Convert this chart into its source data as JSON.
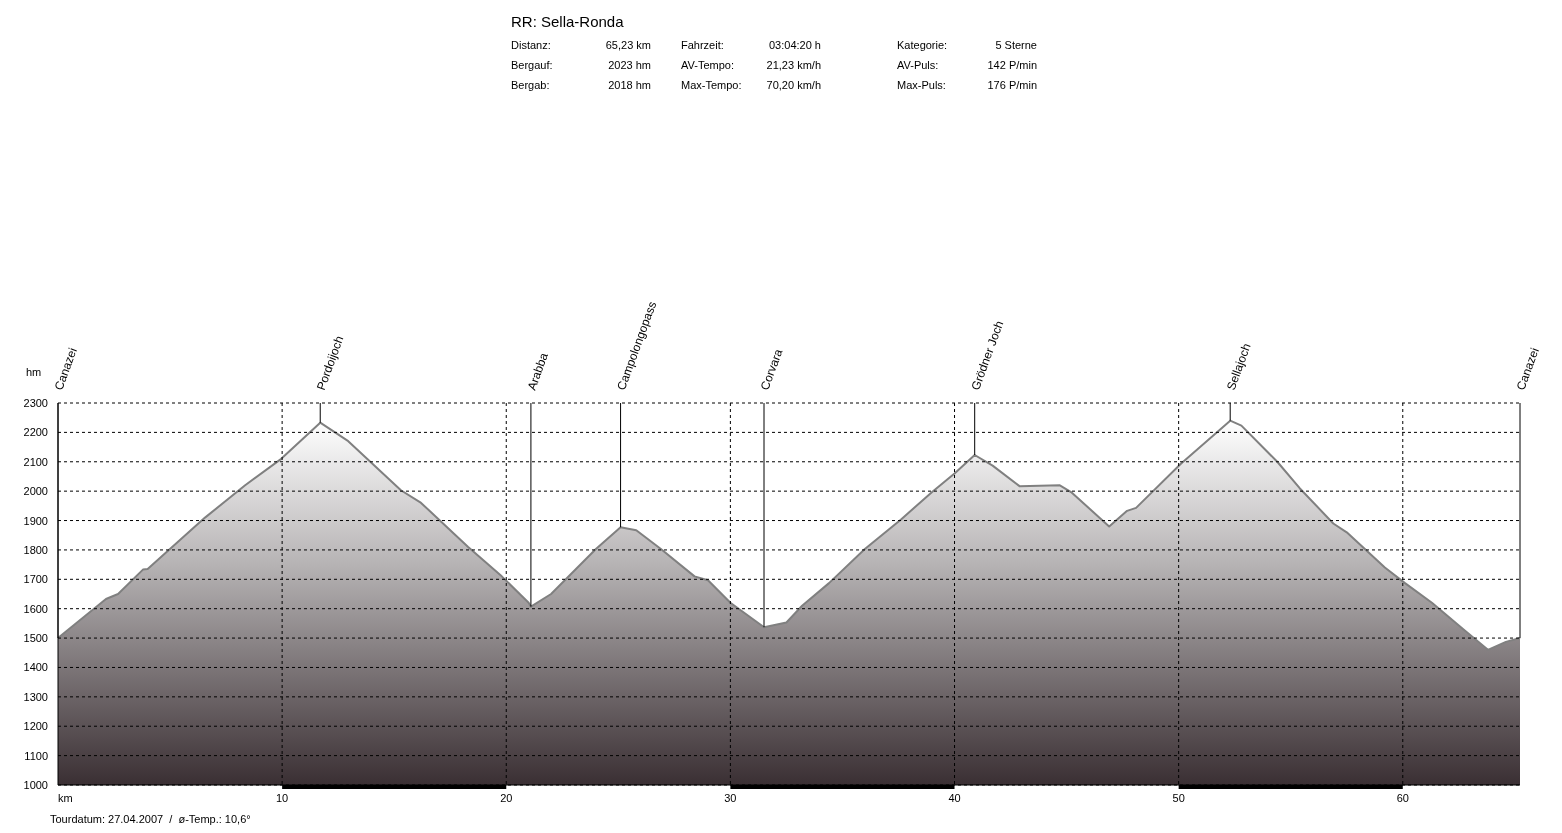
{
  "chart_data": {
    "type": "area",
    "title": "RR: Sella-Ronda",
    "xlabel": "km",
    "ylabel": "hm",
    "annotations": [
      "Distanz:",
      "65,23 km",
      "Bergauf:",
      "2023 hm",
      "Bergab:",
      "2018 hm",
      "Fahrzeit:",
      "03:04:20 h",
      "AV-Tempo:",
      "21,23 km/h",
      "Max-Tempo:",
      "70,20 km/h",
      "Kategorie:",
      "5 Sterne",
      "AV-Puls:",
      "142 P/min",
      "Max-Puls:",
      "176 P/min",
      "Tourdatum: 27.04.2007  /  ø-Temp.: 10,6°"
    ],
    "x": [
      0,
      2.14,
      2.68,
      3.79,
      4.0,
      6.56,
      8.35,
      9.96,
      11.7,
      12.95,
      15.3,
      16.2,
      18.3,
      19.8,
      21.0,
      21.1,
      22.0,
      24.0,
      25.1,
      25.8,
      26.9,
      28.4,
      29.0,
      30.0,
      31.5,
      32.5,
      33.2,
      34.4,
      36.0,
      37.6,
      39.0,
      40.0,
      40.9,
      41.7,
      42.9,
      44.7,
      45.2,
      46.9,
      47.7,
      48.1,
      50.1,
      52.3,
      52.8,
      54.4,
      55.4,
      56.9,
      57.5,
      59.2,
      60.1,
      61.3,
      62.7,
      63.8,
      64.6,
      65.23
    ],
    "series": [
      {
        "color": "#808080",
        "values": [
          1500,
          1633,
          1650,
          1733,
          1735,
          1910,
          2020,
          2110,
          2233,
          2170,
          2003,
          1960,
          1810,
          1710,
          1620,
          1607,
          1650,
          1803,
          1877,
          1867,
          1803,
          1710,
          1697,
          1620,
          1537,
          1553,
          1610,
          1687,
          1803,
          1903,
          1997,
          2060,
          2123,
          2087,
          2017,
          2020,
          1997,
          1880,
          1933,
          1943,
          2093,
          2240,
          2223,
          2100,
          2010,
          1890,
          1860,
          1740,
          1687,
          1620,
          1530,
          1460,
          1487,
          1500
        ]
      }
    ],
    "xlim": [
      0,
      65.23
    ],
    "xticks": [
      10,
      20,
      30,
      40,
      50,
      60
    ],
    "ylim": [
      1000,
      2300
    ],
    "yticks": [
      1000,
      1100,
      1200,
      1300,
      1400,
      1500,
      1600,
      1700,
      1800,
      1900,
      2000,
      2100,
      2200,
      2300
    ],
    "grid": true,
    "ref_lines": [
      {
        "axis": "x",
        "value": 0,
        "label": "Canazei"
      },
      {
        "axis": "x",
        "value": 11.7,
        "label": "Pordoijoch"
      },
      {
        "axis": "x",
        "value": 21.1,
        "label": "Arabba"
      },
      {
        "axis": "x",
        "value": 25.1,
        "label": "Campolongopass"
      },
      {
        "axis": "x",
        "value": 31.5,
        "label": "Corvara"
      },
      {
        "axis": "x",
        "value": 40.9,
        "label": "Grödner Joch"
      },
      {
        "axis": "x",
        "value": 52.3,
        "label": "Sellajoch"
      },
      {
        "axis": "x",
        "value": 65.23,
        "label": "Canazei"
      }
    ]
  }
}
